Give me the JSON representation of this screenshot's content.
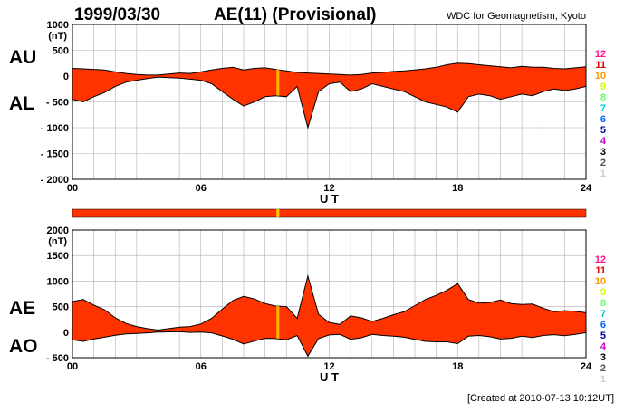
{
  "header": {
    "date": "1999/03/30",
    "title": "AE(11) (Provisional)",
    "source": "WDC for Geomagnetism, Kyoto"
  },
  "footer": {
    "created": "[Created at 2010-07-13 10:12UT]"
  },
  "colors": {
    "fill": "#ff3300",
    "outline": "#000000",
    "grid": "#b0b0b0",
    "highlight": "#ffcc00"
  },
  "legend": {
    "labels": [
      "12",
      "11",
      "10",
      "9",
      "8",
      "7",
      "6",
      "5",
      "4",
      "3",
      "2",
      "1"
    ],
    "colors": [
      "#ff1493",
      "#e00000",
      "#ff9900",
      "#ccff00",
      "#66ff66",
      "#00cccc",
      "#0066ff",
      "#0000aa",
      "#cc00cc",
      "#000000",
      "#555555",
      "#cccccc"
    ]
  },
  "chart_data": [
    {
      "type": "area",
      "series_labels": [
        "AU",
        "AL"
      ],
      "unit": "(nT)",
      "xlabel": "U T",
      "xlim": [
        0,
        24
      ],
      "ylim": [
        -2000,
        1000
      ],
      "yticks": [
        1000,
        500,
        0,
        -500,
        -1000,
        -1500,
        -2000
      ],
      "ytick_labels": [
        "1000",
        "500",
        "0",
        "- 500",
        "- 1000",
        "- 1500",
        "- 2000"
      ],
      "xticks": [
        0,
        6,
        12,
        18,
        24
      ],
      "xtick_labels": [
        "00",
        "06",
        "12",
        "18",
        "24"
      ],
      "grid": true,
      "x": [
        0,
        0.5,
        1,
        1.5,
        2,
        2.5,
        3,
        3.5,
        4,
        4.5,
        5,
        5.5,
        6,
        6.5,
        7,
        7.5,
        8,
        8.5,
        9,
        9.5,
        10,
        10.5,
        11,
        11.5,
        12,
        12.5,
        13,
        13.5,
        14,
        14.5,
        15,
        15.5,
        16,
        16.5,
        17,
        17.5,
        18,
        18.5,
        19,
        19.5,
        20,
        20.5,
        21,
        21.5,
        22,
        22.5,
        23,
        23.5,
        24
      ],
      "AU": [
        150,
        140,
        130,
        120,
        80,
        50,
        30,
        20,
        20,
        40,
        60,
        50,
        80,
        120,
        150,
        170,
        120,
        150,
        160,
        130,
        100,
        70,
        60,
        50,
        40,
        30,
        20,
        30,
        60,
        70,
        90,
        100,
        120,
        140,
        170,
        220,
        250,
        240,
        220,
        200,
        180,
        160,
        190,
        170,
        170,
        150,
        140,
        160,
        180
      ],
      "AL": [
        -450,
        -500,
        -400,
        -320,
        -200,
        -120,
        -80,
        -50,
        -20,
        -30,
        -40,
        -60,
        -80,
        -150,
        -300,
        -450,
        -580,
        -500,
        -400,
        -380,
        -400,
        -200,
        -1000,
        -300,
        -150,
        -120,
        -300,
        -250,
        -150,
        -200,
        -250,
        -300,
        -400,
        -500,
        -550,
        -600,
        -700,
        -400,
        -350,
        -380,
        -450,
        -400,
        -350,
        -380,
        -300,
        -250,
        -280,
        -250,
        -200
      ]
    },
    {
      "type": "area",
      "series_labels": [
        "AE",
        "AO"
      ],
      "unit": "(nT)",
      "xlabel": "U T",
      "xlim": [
        0,
        24
      ],
      "ylim": [
        -500,
        2000
      ],
      "yticks": [
        2000,
        1500,
        1000,
        500,
        0,
        -500
      ],
      "ytick_labels": [
        "2000",
        "1500",
        "1000",
        "500",
        "0",
        "- 500"
      ],
      "xticks": [
        0,
        6,
        12,
        18,
        24
      ],
      "xtick_labels": [
        "00",
        "06",
        "12",
        "18",
        "24"
      ],
      "grid": true,
      "x": [
        0,
        0.5,
        1,
        1.5,
        2,
        2.5,
        3,
        3.5,
        4,
        4.5,
        5,
        5.5,
        6,
        6.5,
        7,
        7.5,
        8,
        8.5,
        9,
        9.5,
        10,
        10.5,
        11,
        11.5,
        12,
        12.5,
        13,
        13.5,
        14,
        14.5,
        15,
        15.5,
        16,
        16.5,
        17,
        17.5,
        18,
        18.5,
        19,
        19.5,
        20,
        20.5,
        21,
        21.5,
        22,
        22.5,
        23,
        23.5,
        24
      ],
      "AE": [
        600,
        640,
        530,
        440,
        280,
        170,
        110,
        70,
        40,
        70,
        100,
        110,
        160,
        270,
        450,
        620,
        700,
        650,
        560,
        510,
        500,
        270,
        1100,
        350,
        190,
        150,
        320,
        280,
        210,
        270,
        340,
        400,
        520,
        640,
        720,
        820,
        950,
        640,
        570,
        580,
        630,
        560,
        540,
        550,
        470,
        400,
        420,
        410,
        380
      ],
      "AO": [
        -150,
        -180,
        -135,
        -100,
        -60,
        -35,
        -25,
        -15,
        0,
        5,
        10,
        -5,
        0,
        -15,
        -75,
        -140,
        -230,
        -175,
        -120,
        -125,
        -150,
        -65,
        -470,
        -125,
        -55,
        -45,
        -140,
        -110,
        -45,
        -65,
        -80,
        -100,
        -140,
        -180,
        -190,
        -190,
        -225,
        -80,
        -65,
        -90,
        -135,
        -120,
        -80,
        -105,
        -65,
        -50,
        -70,
        -45,
        -10
      ]
    }
  ],
  "timeline_bar": {
    "color": "#ff3300",
    "highlight_hours": [
      9.6
    ]
  }
}
